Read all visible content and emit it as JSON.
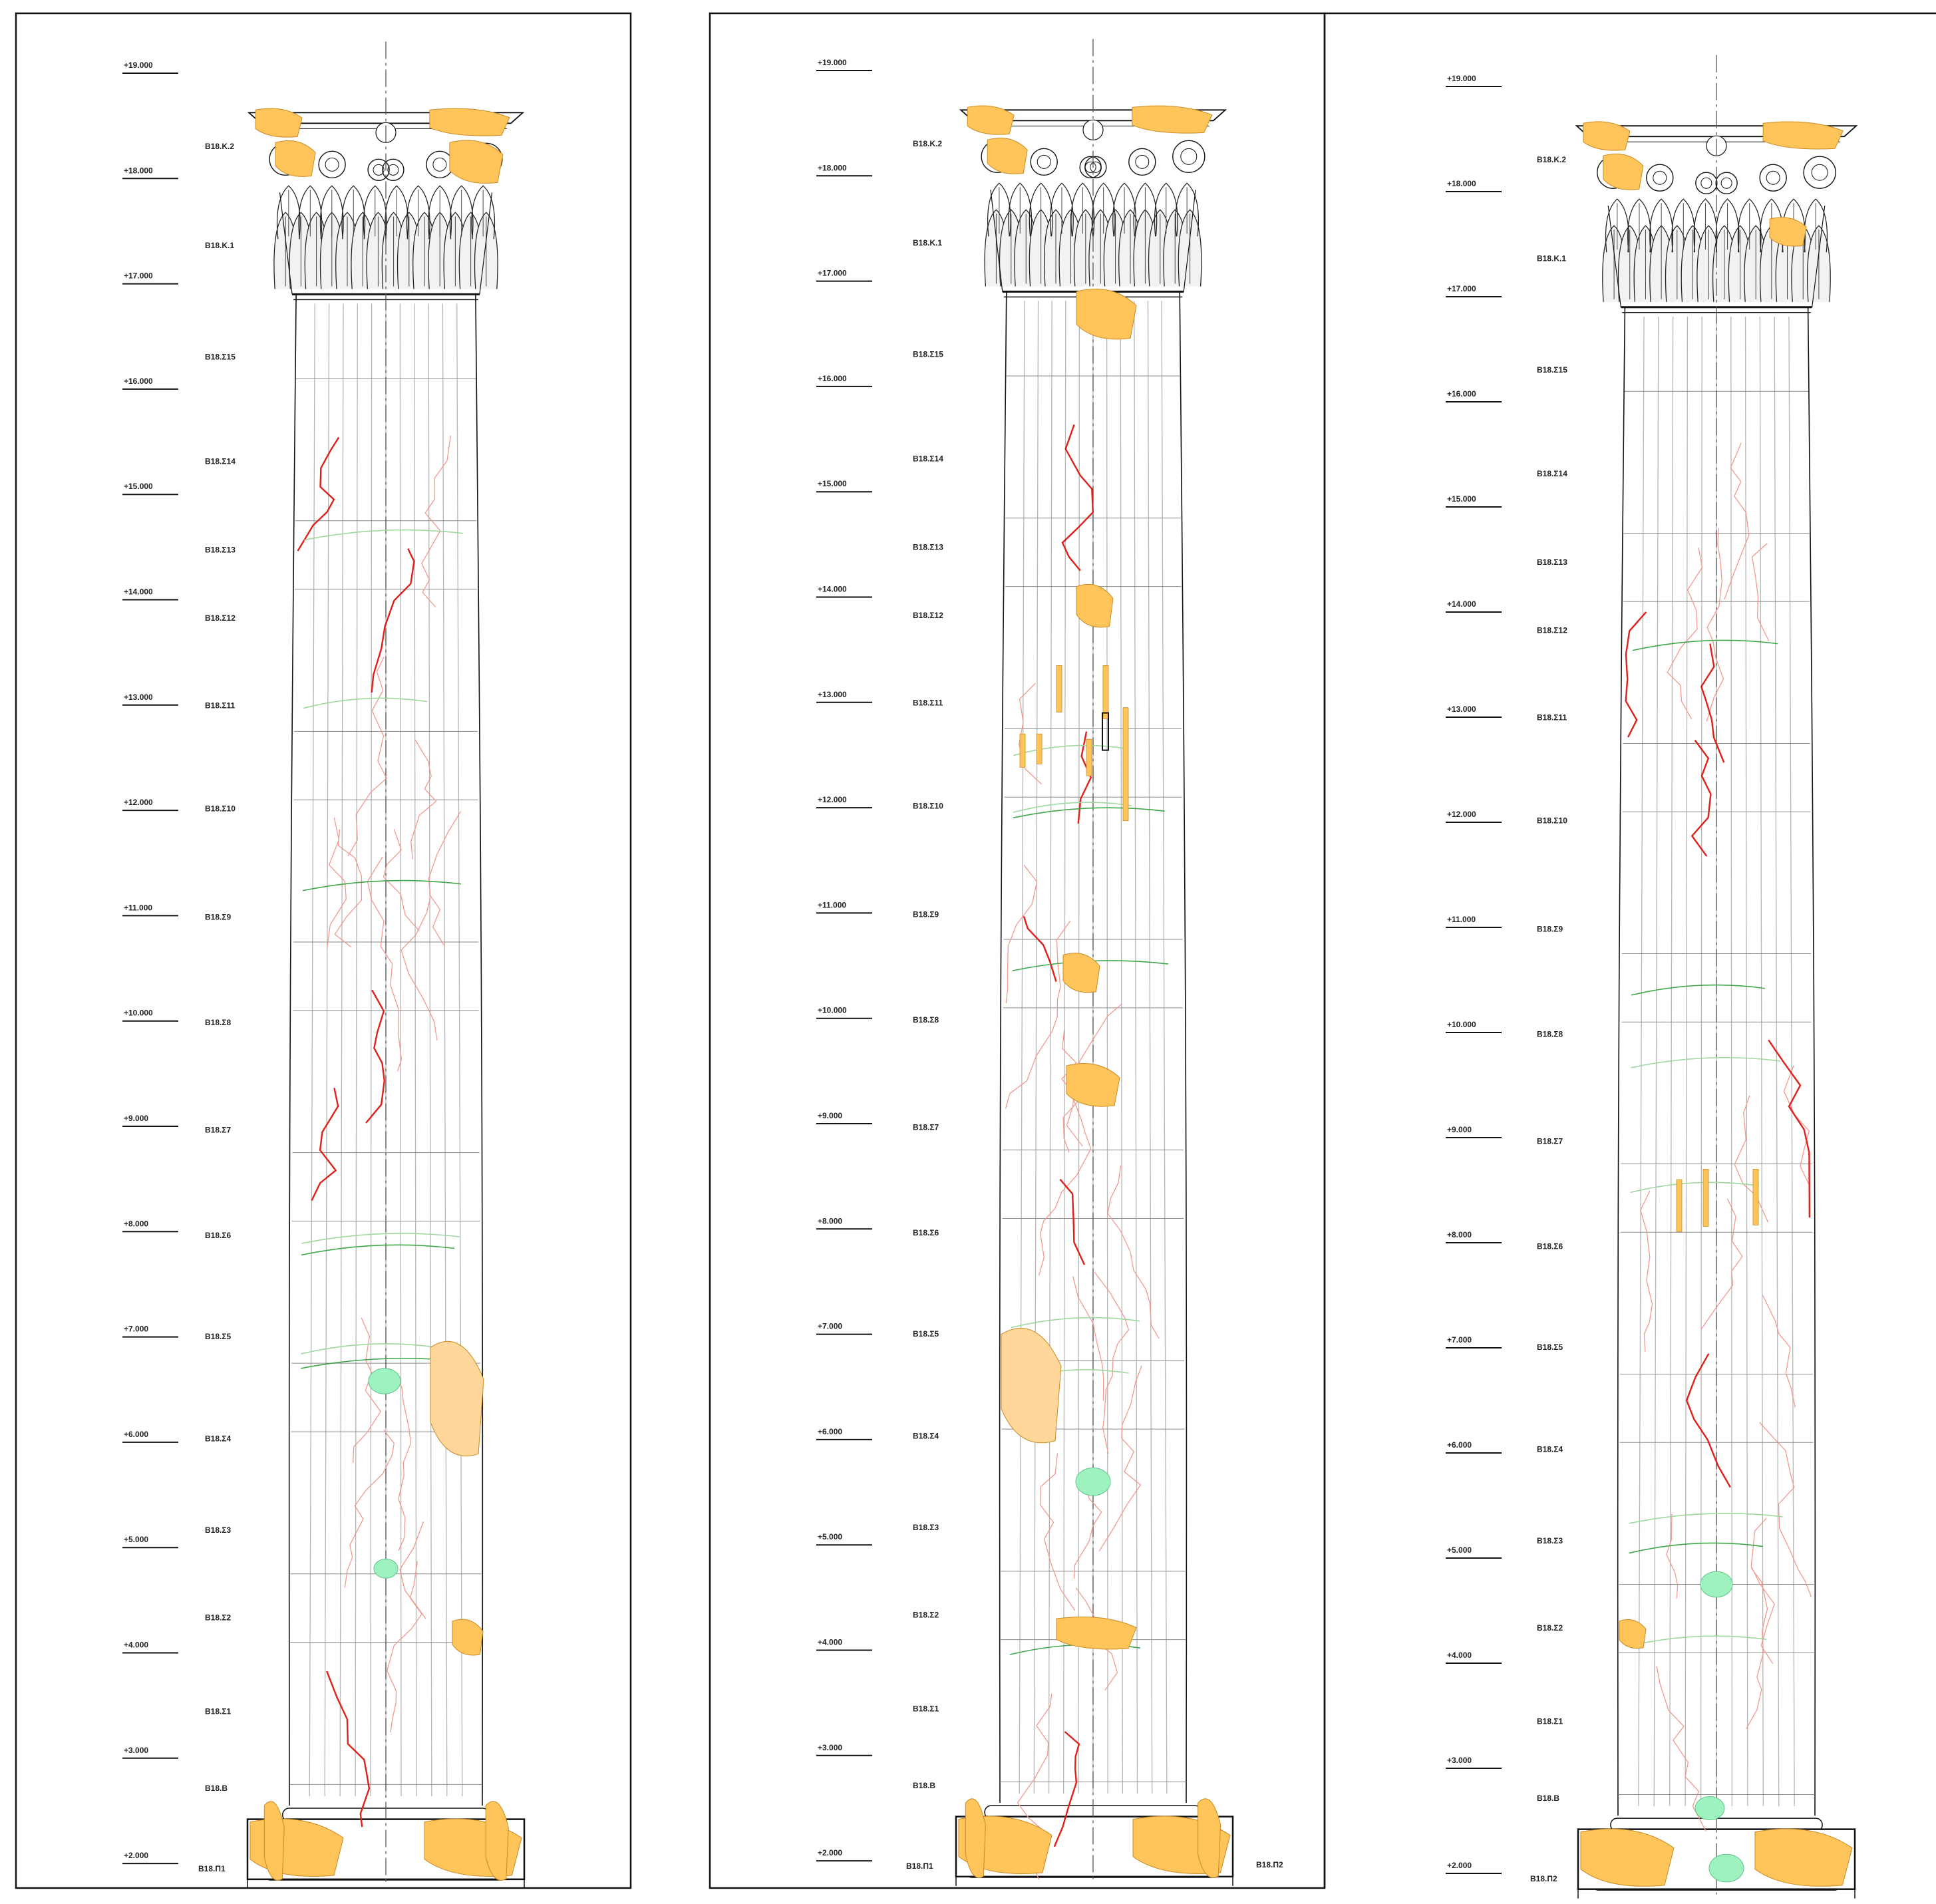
{
  "colors": {
    "outline": "#111111",
    "shaft_line": "#b5b5b5",
    "joint_line": "#8a8a8a",
    "axis_line": "#555555",
    "crack_red": "#e0201a",
    "crack_light_red": "#f19a90",
    "crack_green": "#3fa64a",
    "crack_light_green": "#9fd7a0",
    "loss_orange": "#ffc55a",
    "loss_orange_light": "#ffd79a",
    "patch_green": "#9ef2bf"
  },
  "elevations": [
    {
      "id": "e19",
      "label": "+19.000"
    },
    {
      "id": "e18",
      "label": "+18.000"
    },
    {
      "id": "e17",
      "label": "+17.000"
    },
    {
      "id": "e16",
      "label": "+16.000"
    },
    {
      "id": "e15",
      "label": "+15.000"
    },
    {
      "id": "e14",
      "label": "+14.000"
    },
    {
      "id": "e13",
      "label": "+13.000"
    },
    {
      "id": "e12",
      "label": "+12.000"
    },
    {
      "id": "e11",
      "label": "+11.000"
    },
    {
      "id": "e10",
      "label": "+10.000"
    },
    {
      "id": "e9",
      "label": "+9.000"
    },
    {
      "id": "e8",
      "label": "+8.000"
    },
    {
      "id": "e7",
      "label": "+7.000"
    },
    {
      "id": "e6",
      "label": "+6.000"
    },
    {
      "id": "e5",
      "label": "+5.000"
    },
    {
      "id": "e4",
      "label": "+4.000"
    },
    {
      "id": "e3",
      "label": "+3.000"
    },
    {
      "id": "e2",
      "label": "+2.000"
    }
  ],
  "blocks": [
    {
      "id": "k2",
      "label": "B18.K.2"
    },
    {
      "id": "k1",
      "label": "B18.K.1"
    },
    {
      "id": "s15",
      "label": "B18.Σ15"
    },
    {
      "id": "s14",
      "label": "B18.Σ14"
    },
    {
      "id": "s13",
      "label": "B18.Σ13"
    },
    {
      "id": "s12",
      "label": "B18.Σ12"
    },
    {
      "id": "s11",
      "label": "B18.Σ11"
    },
    {
      "id": "s10",
      "label": "B18.Σ10"
    },
    {
      "id": "s9",
      "label": "B18.Σ9"
    },
    {
      "id": "s8",
      "label": "B18.Σ8"
    },
    {
      "id": "s7",
      "label": "B18.Σ7"
    },
    {
      "id": "s6",
      "label": "B18.Σ6"
    },
    {
      "id": "s5",
      "label": "B18.Σ5"
    },
    {
      "id": "s4",
      "label": "B18.Σ4"
    },
    {
      "id": "s3",
      "label": "B18.Σ3"
    },
    {
      "id": "s2",
      "label": "B18.Σ2"
    },
    {
      "id": "s1",
      "label": "B18.Σ1"
    },
    {
      "id": "b",
      "label": "B18.B"
    }
  ],
  "panels": [
    {
      "id": "panel-1",
      "plinth_label": "B18.Π1"
    },
    {
      "id": "panel-2",
      "plinth_label": "B18.Π1",
      "plinth_label_right": "B18.Π2"
    },
    {
      "id": "panel-3",
      "plinth_label": "B18.Π2"
    }
  ]
}
